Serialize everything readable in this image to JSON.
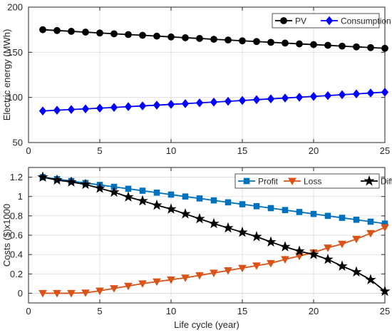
{
  "chart_data": [
    {
      "type": "line",
      "xlabel": "",
      "ylabel": "Electric energy (MWh)",
      "xlim": [
        0,
        25
      ],
      "ylim": [
        50,
        200
      ],
      "xticks": [
        0,
        5,
        10,
        15,
        20,
        25
      ],
      "yticks": [
        50,
        100,
        150,
        200
      ],
      "grid": "partial",
      "legend_position": "top-right",
      "x": [
        1,
        2,
        3,
        4,
        5,
        6,
        7,
        8,
        9,
        10,
        11,
        12,
        13,
        14,
        15,
        16,
        17,
        18,
        19,
        20,
        21,
        22,
        23,
        24,
        25
      ],
      "series": [
        {
          "name": "PV",
          "color": "#000000",
          "marker": "circle",
          "values": [
            175.0,
            174.1,
            173.2,
            172.3,
            171.4,
            170.5,
            169.6,
            168.8,
            167.9,
            167.0,
            166.1,
            165.3,
            164.4,
            163.6,
            162.7,
            161.9,
            161.0,
            160.2,
            159.3,
            158.5,
            157.7,
            156.8,
            156.0,
            155.2,
            154.4
          ]
        },
        {
          "name": "Consumption",
          "color": "#0000ff",
          "marker": "diamond",
          "values": [
            85.0,
            85.8,
            86.6,
            87.3,
            88.1,
            88.9,
            89.8,
            90.6,
            91.4,
            92.3,
            93.1,
            94.0,
            94.8,
            95.7,
            96.6,
            97.5,
            98.4,
            99.3,
            100.2,
            101.1,
            102.0,
            103.0,
            103.9,
            104.9,
            105.8
          ]
        }
      ]
    },
    {
      "type": "line",
      "xlabel": "Life cycle (year)",
      "ylabel": "Costs ($)x1000",
      "xlim": [
        0,
        25
      ],
      "ylim": [
        -0.1,
        1.3
      ],
      "xticks": [
        0,
        5,
        10,
        15,
        20,
        25
      ],
      "yticks": [
        0,
        0.2,
        0.4,
        0.6,
        0.8,
        1,
        1.2
      ],
      "ytick_labels": [
        "0",
        "0.2",
        "0.4",
        "0.6",
        "0.8",
        "1",
        "1.2"
      ],
      "grid": "partial",
      "legend_position": "top-right",
      "x": [
        1,
        2,
        3,
        4,
        5,
        6,
        7,
        8,
        9,
        10,
        11,
        12,
        13,
        14,
        15,
        16,
        17,
        18,
        19,
        20,
        21,
        22,
        23,
        24,
        25
      ],
      "series": [
        {
          "name": "Profit",
          "color": "#0072bd",
          "marker": "square",
          "values": [
            1.2,
            1.18,
            1.16,
            1.14,
            1.12,
            1.1,
            1.08,
            1.06,
            1.04,
            1.02,
            1.0,
            0.98,
            0.96,
            0.94,
            0.92,
            0.9,
            0.88,
            0.86,
            0.84,
            0.82,
            0.8,
            0.78,
            0.76,
            0.74,
            0.72
          ]
        },
        {
          "name": "Loss",
          "color": "#d95319",
          "marker": "triangle-down",
          "values": [
            0.0,
            0.0,
            0.0,
            0.005,
            0.025,
            0.05,
            0.075,
            0.1,
            0.12,
            0.14,
            0.16,
            0.185,
            0.21,
            0.235,
            0.26,
            0.285,
            0.31,
            0.35,
            0.385,
            0.42,
            0.47,
            0.51,
            0.56,
            0.62,
            0.68
          ]
        },
        {
          "name": "Difference",
          "color": "#000000",
          "marker": "star",
          "values": [
            1.2,
            1.17,
            1.15,
            1.125,
            1.085,
            1.045,
            0.995,
            0.955,
            0.91,
            0.87,
            0.82,
            0.77,
            0.72,
            0.675,
            0.63,
            0.585,
            0.53,
            0.48,
            0.435,
            0.4,
            0.35,
            0.28,
            0.22,
            0.14,
            0.02
          ]
        }
      ]
    }
  ]
}
